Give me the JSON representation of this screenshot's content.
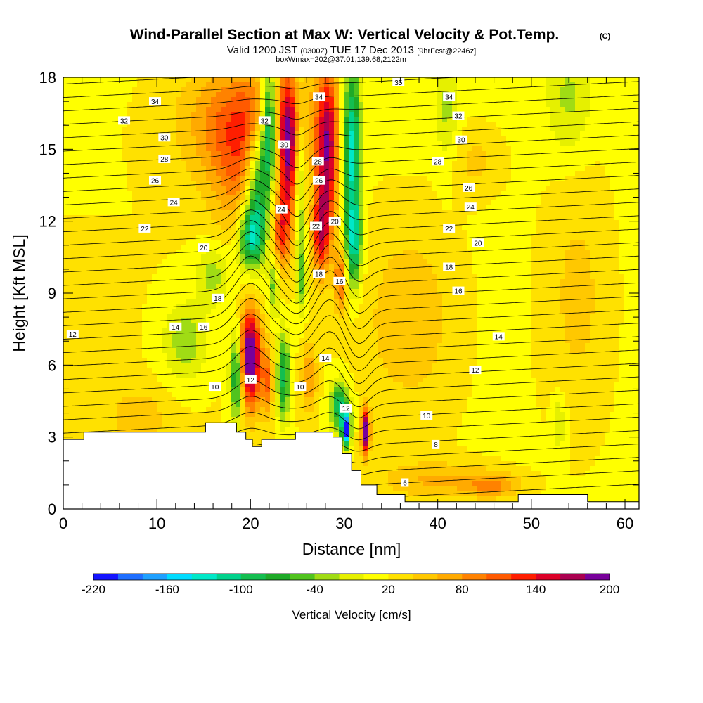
{
  "chart_data": {
    "type": "heatmap",
    "title": "Wind-Parallel Section at Max W: Vertical Velocity & Pot.Temp.",
    "title_mark": "(C)",
    "subtitle_valid": "Valid 1200 JST",
    "subtitle_utc": "(0300Z)",
    "subtitle_date": "TUE 17 Dec 2013",
    "subtitle_fcst": "[9hrFcst@2246z]",
    "subtitle2": "boxWmax=202@37.01,139.68,2122m",
    "xlabel": "Distance [nm]",
    "ylabel": "Height [Kft MSL]",
    "xlim": [
      0,
      61.5
    ],
    "ylim": [
      0,
      18
    ],
    "xticks": [
      0,
      10,
      20,
      30,
      40,
      50,
      60
    ],
    "yticks": [
      0,
      3,
      6,
      9,
      12,
      15,
      18
    ],
    "xtick_labels": [
      "0",
      "10",
      "20",
      "30",
      "40",
      "50",
      "60"
    ],
    "ytick_labels": [
      "0",
      "3",
      "6",
      "9",
      "12",
      "15",
      "18"
    ],
    "colorbar": {
      "label": "Vertical Velocity [cm/s]",
      "bounds": [
        -220,
        -200,
        -180,
        -160,
        -140,
        -120,
        -100,
        -80,
        -60,
        -40,
        -20,
        0,
        20,
        40,
        60,
        80,
        100,
        120,
        140,
        160,
        180,
        200
      ],
      "tick_values": [
        -220,
        -160,
        -100,
        -40,
        20,
        80,
        140,
        200
      ],
      "tick_labels": [
        "-220",
        "-160",
        "-100",
        "-40",
        "20",
        "80",
        "140",
        "200"
      ],
      "colors": [
        "#1414ff",
        "#1e6eff",
        "#1ea0ff",
        "#00dcff",
        "#00e8c8",
        "#00d28c",
        "#14be50",
        "#1eaa28",
        "#50c31e",
        "#a0dc14",
        "#e6f000",
        "#ffff00",
        "#ffe100",
        "#ffc800",
        "#ffaa00",
        "#ff8200",
        "#ff5a00",
        "#ff1e00",
        "#dc0028",
        "#aa0050",
        "#78009b"
      ]
    },
    "terrain": [
      [
        0,
        2.9
      ],
      [
        2.2,
        2.9
      ],
      [
        2.2,
        3.2
      ],
      [
        15.2,
        3.2
      ],
      [
        15.2,
        3.6
      ],
      [
        18.5,
        3.6
      ],
      [
        18.5,
        3.2
      ],
      [
        19.5,
        3.2
      ],
      [
        19.5,
        2.9
      ],
      [
        20.2,
        2.9
      ],
      [
        20.2,
        2.6
      ],
      [
        21.2,
        2.6
      ],
      [
        21.2,
        2.9
      ],
      [
        24.8,
        2.9
      ],
      [
        24.8,
        3.2
      ],
      [
        28.8,
        3.2
      ],
      [
        28.8,
        3.0
      ],
      [
        29.8,
        3.0
      ],
      [
        29.8,
        2.3
      ],
      [
        30.8,
        2.3
      ],
      [
        30.8,
        1.6
      ],
      [
        31.8,
        1.6
      ],
      [
        31.8,
        1.0
      ],
      [
        33.5,
        1.0
      ],
      [
        33.5,
        0.6
      ],
      [
        36.5,
        0.6
      ],
      [
        36.5,
        0.3
      ],
      [
        48.6,
        0.3
      ],
      [
        48.6,
        0.6
      ],
      [
        56,
        0.6
      ],
      [
        56,
        0.3
      ],
      [
        61.5,
        0.3
      ]
    ],
    "w_features": [
      {
        "x": 0,
        "z": 0,
        "sx": 80,
        "sz": 40,
        "v": 22
      },
      {
        "x": 20,
        "z": 16.2,
        "sx": 6.5,
        "sz": 2.4,
        "v": 100
      },
      {
        "x": 19,
        "z": 13.5,
        "sx": 3.5,
        "sz": 2.5,
        "v": 55
      },
      {
        "x": 22,
        "z": 16,
        "sx": 0.9,
        "sz": 2.5,
        "v": -180
      },
      {
        "x": 20.8,
        "z": 13.5,
        "sx": 1.3,
        "sz": 2.5,
        "v": -140
      },
      {
        "x": 20,
        "z": 11.3,
        "sx": 1.4,
        "sz": 1.3,
        "v": -120
      },
      {
        "x": 24,
        "z": 14.8,
        "sx": 0.9,
        "sz": 3.2,
        "v": 120
      },
      {
        "x": 23.2,
        "z": 11.5,
        "sx": 0.9,
        "sz": 1.6,
        "v": 90
      },
      {
        "x": 25.3,
        "z": 13.5,
        "sx": 0.55,
        "sz": 3.5,
        "v": -60
      },
      {
        "x": 28.2,
        "z": 15,
        "sx": 1.2,
        "sz": 3.5,
        "v": 150
      },
      {
        "x": 27.5,
        "z": 11.5,
        "sx": 0.9,
        "sz": 1.8,
        "v": 110
      },
      {
        "x": 30.8,
        "z": 15,
        "sx": 1.0,
        "sz": 3.5,
        "v": -150
      },
      {
        "x": 31,
        "z": 11,
        "sx": 0.9,
        "sz": 1.8,
        "v": -110
      },
      {
        "x": 29.6,
        "z": 9.6,
        "sx": 0.6,
        "sz": 1.3,
        "v": 90
      },
      {
        "x": 25.5,
        "z": 9.6,
        "sx": 0.55,
        "sz": 1.4,
        "v": -60
      },
      {
        "x": 22.5,
        "z": 9.3,
        "sx": 0.55,
        "sz": 1.2,
        "v": -70
      },
      {
        "x": 20,
        "z": 6.3,
        "sx": 1.1,
        "sz": 2.0,
        "v": 200
      },
      {
        "x": 18.5,
        "z": 5.5,
        "sx": 0.7,
        "sz": 1.9,
        "v": -120
      },
      {
        "x": 13,
        "z": 7,
        "sx": 2.4,
        "sz": 1.6,
        "v": -55
      },
      {
        "x": 16,
        "z": 9.8,
        "sx": 1.8,
        "sz": 1.3,
        "v": -50
      },
      {
        "x": 21.8,
        "z": 5.3,
        "sx": 0.6,
        "sz": 1.4,
        "v": 80
      },
      {
        "x": 23.5,
        "z": 5.5,
        "sx": 0.7,
        "sz": 1.8,
        "v": -110
      },
      {
        "x": 26.3,
        "z": 5.5,
        "sx": 0.8,
        "sz": 1.5,
        "v": 60
      },
      {
        "x": 29.5,
        "z": 4.3,
        "sx": 1.0,
        "sz": 1.0,
        "v": -120
      },
      {
        "x": 30.2,
        "z": 3.3,
        "sx": 0.45,
        "sz": 0.7,
        "v": -220
      },
      {
        "x": 32.3,
        "z": 3.2,
        "sx": 0.45,
        "sz": 0.9,
        "v": 200
      },
      {
        "x": 41,
        "z": 16.5,
        "sx": 1.2,
        "sz": 2.5,
        "v": -40
      },
      {
        "x": 54,
        "z": 17,
        "sx": 2.3,
        "sz": 2.5,
        "v": -40
      },
      {
        "x": 53,
        "z": 3.6,
        "sx": 0.8,
        "sz": 1.3,
        "v": -40
      },
      {
        "x": 40,
        "z": 1.2,
        "sx": 6,
        "sz": 0.8,
        "v": 45
      },
      {
        "x": 46,
        "z": 1.0,
        "sx": 3,
        "sz": 0.5,
        "v": 60
      },
      {
        "x": 37,
        "z": 8,
        "sx": 5,
        "sz": 4,
        "v": 38
      },
      {
        "x": 55,
        "z": 9,
        "sx": 4,
        "sz": 6,
        "v": 32
      },
      {
        "x": 8,
        "z": 3.8,
        "sx": 3,
        "sz": 1.2,
        "v": 35
      },
      {
        "x": 44,
        "z": 14.5,
        "sx": 3,
        "sz": 1.5,
        "v": 30
      }
    ],
    "contour_labels": [
      {
        "x": 1.0,
        "z": 7.3,
        "t": "12"
      },
      {
        "x": 16.2,
        "z": 5.1,
        "t": "10"
      },
      {
        "x": 20,
        "z": 5.4,
        "t": "12"
      },
      {
        "x": 12,
        "z": 7.6,
        "t": "14"
      },
      {
        "x": 15,
        "z": 7.6,
        "t": "16"
      },
      {
        "x": 16.5,
        "z": 8.8,
        "t": "18"
      },
      {
        "x": 15,
        "z": 10.9,
        "t": "20"
      },
      {
        "x": 8.7,
        "z": 11.7,
        "t": "22"
      },
      {
        "x": 11.8,
        "z": 12.8,
        "t": "24"
      },
      {
        "x": 9.8,
        "z": 13.7,
        "t": "26"
      },
      {
        "x": 10.8,
        "z": 14.6,
        "t": "28"
      },
      {
        "x": 10.8,
        "z": 15.5,
        "t": "30"
      },
      {
        "x": 6.5,
        "z": 16.2,
        "t": "32"
      },
      {
        "x": 9.8,
        "z": 17.0,
        "t": "34"
      },
      {
        "x": 21.5,
        "z": 16.2,
        "t": "32"
      },
      {
        "x": 23.6,
        "z": 15.2,
        "t": "30"
      },
      {
        "x": 23.3,
        "z": 12.5,
        "t": "24"
      },
      {
        "x": 27.3,
        "z": 17.2,
        "t": "34"
      },
      {
        "x": 27.2,
        "z": 14.5,
        "t": "28"
      },
      {
        "x": 27.3,
        "z": 13.7,
        "t": "26"
      },
      {
        "x": 27.0,
        "z": 11.8,
        "t": "22"
      },
      {
        "x": 29.0,
        "z": 12.0,
        "t": "20"
      },
      {
        "x": 27.3,
        "z": 9.8,
        "t": "18"
      },
      {
        "x": 29.5,
        "z": 9.5,
        "t": "16"
      },
      {
        "x": 28.0,
        "z": 6.3,
        "t": "14"
      },
      {
        "x": 25.3,
        "z": 5.1,
        "t": "10"
      },
      {
        "x": 30.2,
        "z": 4.2,
        "t": "12"
      },
      {
        "x": 35.8,
        "z": 17.8,
        "t": "35"
      },
      {
        "x": 41.2,
        "z": 17.2,
        "t": "34"
      },
      {
        "x": 42.2,
        "z": 16.4,
        "t": "32"
      },
      {
        "x": 42.5,
        "z": 15.4,
        "t": "30"
      },
      {
        "x": 40,
        "z": 14.5,
        "t": "28"
      },
      {
        "x": 43.3,
        "z": 13.4,
        "t": "26"
      },
      {
        "x": 43.5,
        "z": 12.6,
        "t": "24"
      },
      {
        "x": 41.2,
        "z": 11.7,
        "t": "22"
      },
      {
        "x": 44.3,
        "z": 11.1,
        "t": "20"
      },
      {
        "x": 41.2,
        "z": 10.1,
        "t": "18"
      },
      {
        "x": 42.2,
        "z": 9.1,
        "t": "16"
      },
      {
        "x": 46.5,
        "z": 7.2,
        "t": "14"
      },
      {
        "x": 44.0,
        "z": 5.8,
        "t": "12"
      },
      {
        "x": 38.8,
        "z": 3.9,
        "t": "10"
      },
      {
        "x": 39.8,
        "z": 2.7,
        "t": "8"
      },
      {
        "x": 36.5,
        "z": 1.1,
        "t": "6"
      }
    ]
  }
}
